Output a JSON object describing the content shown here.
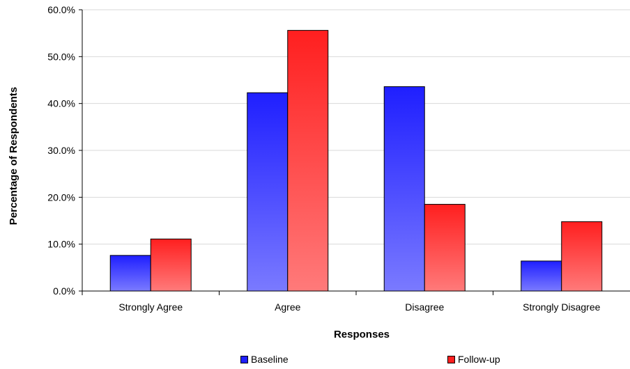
{
  "chart_data": {
    "type": "bar",
    "categories": [
      "Strongly Agree",
      "Agree",
      "Disagree",
      "Strongly Disagree"
    ],
    "series": [
      {
        "name": "Baseline",
        "values": [
          7.6,
          42.3,
          43.6,
          6.4
        ],
        "color_top": "#1f1fff",
        "color_bottom": "#7a7aff"
      },
      {
        "name": "Follow-up",
        "values": [
          11.1,
          55.6,
          18.5,
          14.8
        ],
        "color_top": "#ff1f1f",
        "color_bottom": "#ff7a7a"
      }
    ],
    "title": "",
    "xlabel": "Responses",
    "ylabel": "Percentage of Respondents",
    "ylim": [
      0,
      60
    ],
    "yticks": [
      0,
      10,
      20,
      30,
      40,
      50,
      60
    ],
    "ytick_labels": [
      "0.0%",
      "10.0%",
      "20.0%",
      "30.0%",
      "40.0%",
      "50.0%",
      "60.0%"
    ],
    "grid": true,
    "legend_position": "bottom"
  }
}
